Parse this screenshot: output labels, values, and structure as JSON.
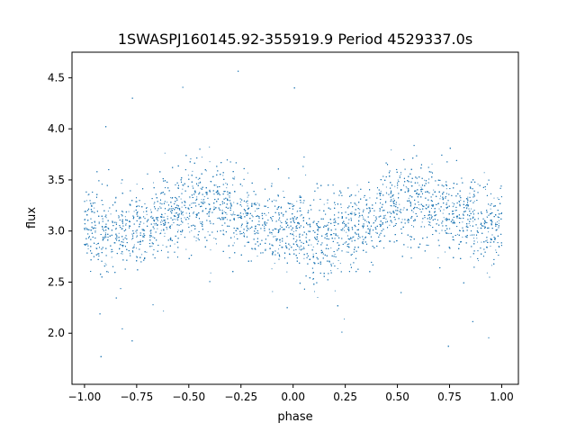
{
  "chart_data": {
    "type": "scatter",
    "title": "1SWASPJ160145.92-355919.9 Period 4529337.0s",
    "xlabel": "phase",
    "ylabel": "flux",
    "xlim": [
      -1.06,
      1.08
    ],
    "ylim": [
      1.5,
      4.75
    ],
    "xticks": [
      -1.0,
      -0.75,
      -0.5,
      -0.25,
      0.0,
      0.25,
      0.5,
      0.75,
      1.0
    ],
    "xtick_labels": [
      "−1.00",
      "−0.75",
      "−0.50",
      "−0.25",
      "0.00",
      "0.25",
      "0.50",
      "0.75",
      "1.00"
    ],
    "yticks": [
      2.0,
      2.5,
      3.0,
      3.5,
      4.0,
      4.5
    ],
    "ytick_labels": [
      "2.0",
      "2.5",
      "3.0",
      "3.5",
      "4.0",
      "4.5"
    ],
    "grid": false,
    "marker_color": "#1f77b4",
    "series": [
      {
        "phase_range": [
          -1.0,
          1.0
        ],
        "profile": {
          "phase": [
            -1.0,
            -0.9,
            -0.8,
            -0.7,
            -0.6,
            -0.5,
            -0.4,
            -0.3,
            -0.2,
            -0.1,
            0.0,
            0.1,
            0.2,
            0.3,
            0.4,
            0.5,
            0.6,
            0.7,
            0.8,
            0.9,
            1.0
          ],
          "median_flux": [
            3.05,
            2.95,
            3.0,
            3.05,
            3.15,
            3.25,
            3.3,
            3.2,
            3.1,
            3.05,
            3.0,
            2.9,
            2.95,
            3.05,
            3.15,
            3.25,
            3.3,
            3.2,
            3.15,
            3.1,
            3.05
          ],
          "spread": [
            0.35,
            0.4,
            0.35,
            0.35,
            0.35,
            0.35,
            0.35,
            0.35,
            0.3,
            0.3,
            0.35,
            0.4,
            0.35,
            0.35,
            0.35,
            0.35,
            0.35,
            0.35,
            0.3,
            0.35,
            0.35
          ]
        },
        "outlier_range": [
          1.65,
          4.6
        ],
        "n_points": 9000
      }
    ]
  }
}
